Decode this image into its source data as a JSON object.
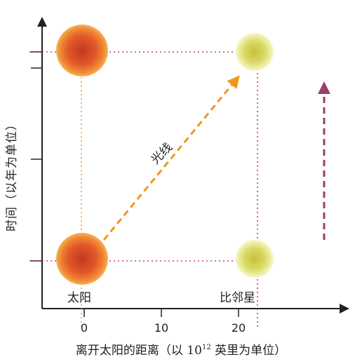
{
  "diagram": {
    "light_label": "光线",
    "sun_label": "太阳",
    "star_label": "比邻星",
    "y_axis_title": "时间（以年为单位）",
    "x_axis_title_prefix": "离开太阳的距离（以 10",
    "x_axis_title_exp": "12",
    "x_axis_title_suffix": " 英里为单位）",
    "x_ticks": [
      "0",
      "10",
      "20"
    ],
    "colors": {
      "axis": "#222222",
      "sun": "#e8642a",
      "star": "#d9dd7a",
      "light_arrow": "#f0961e",
      "guide_line_red": "#c0426a",
      "guide_line_orange": "#f0a040",
      "time_arrow": "#9b3d6e"
    }
  }
}
